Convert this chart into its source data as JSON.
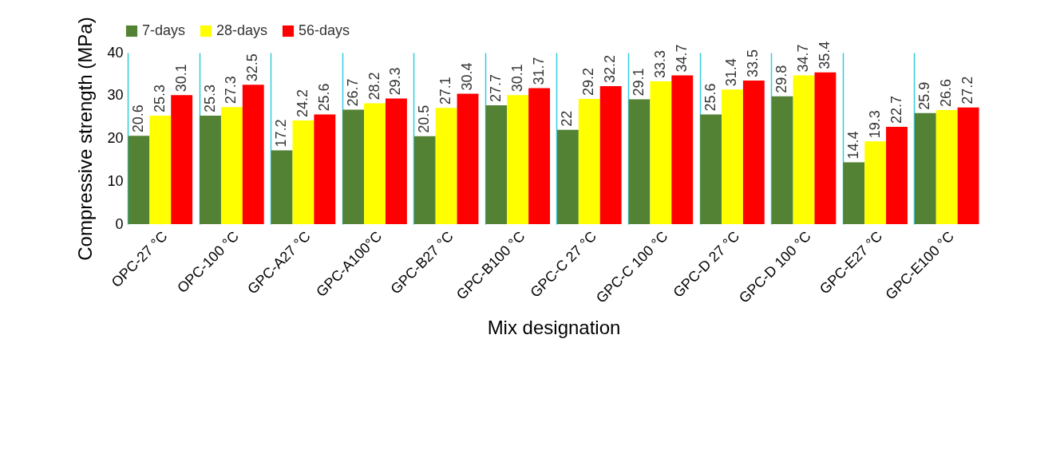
{
  "chart_data": {
    "type": "bar",
    "xlabel": "Mix designation",
    "ylabel": "Compressive strength (MPa)",
    "categories": [
      "OPC-27 °C",
      "OPC-100 °C",
      "GPC-A27 °C",
      "GPC-A100°C",
      "GPC-B27 °C",
      "GPC-B100 °C",
      "GPC-C 27 °C",
      "GPC-C 100 °C",
      "GPC-D 27 °C",
      "GPC-D 100 °C",
      "GPC-E27 °C",
      "GPC-E100 °C"
    ],
    "series": [
      {
        "name": "7-days",
        "color": "#548235",
        "values": [
          20.6,
          25.3,
          17.2,
          26.7,
          20.5,
          27.7,
          22,
          29.1,
          25.6,
          29.8,
          14.4,
          25.9
        ]
      },
      {
        "name": "28-days",
        "color": "#ffff00",
        "values": [
          25.3,
          27.3,
          24.2,
          28.2,
          27.1,
          30.1,
          29.2,
          33.3,
          31.4,
          34.7,
          19.3,
          26.6
        ]
      },
      {
        "name": "56-days",
        "color": "#ff0000",
        "values": [
          30.1,
          32.5,
          25.6,
          29.3,
          30.4,
          31.7,
          32.2,
          34.7,
          33.5,
          35.4,
          22.7,
          27.2
        ]
      }
    ],
    "ylim": [
      0,
      40
    ],
    "yticks": [
      0,
      10,
      20,
      30,
      40
    ],
    "grid": "x",
    "legend": "top",
    "data_labels": true
  }
}
